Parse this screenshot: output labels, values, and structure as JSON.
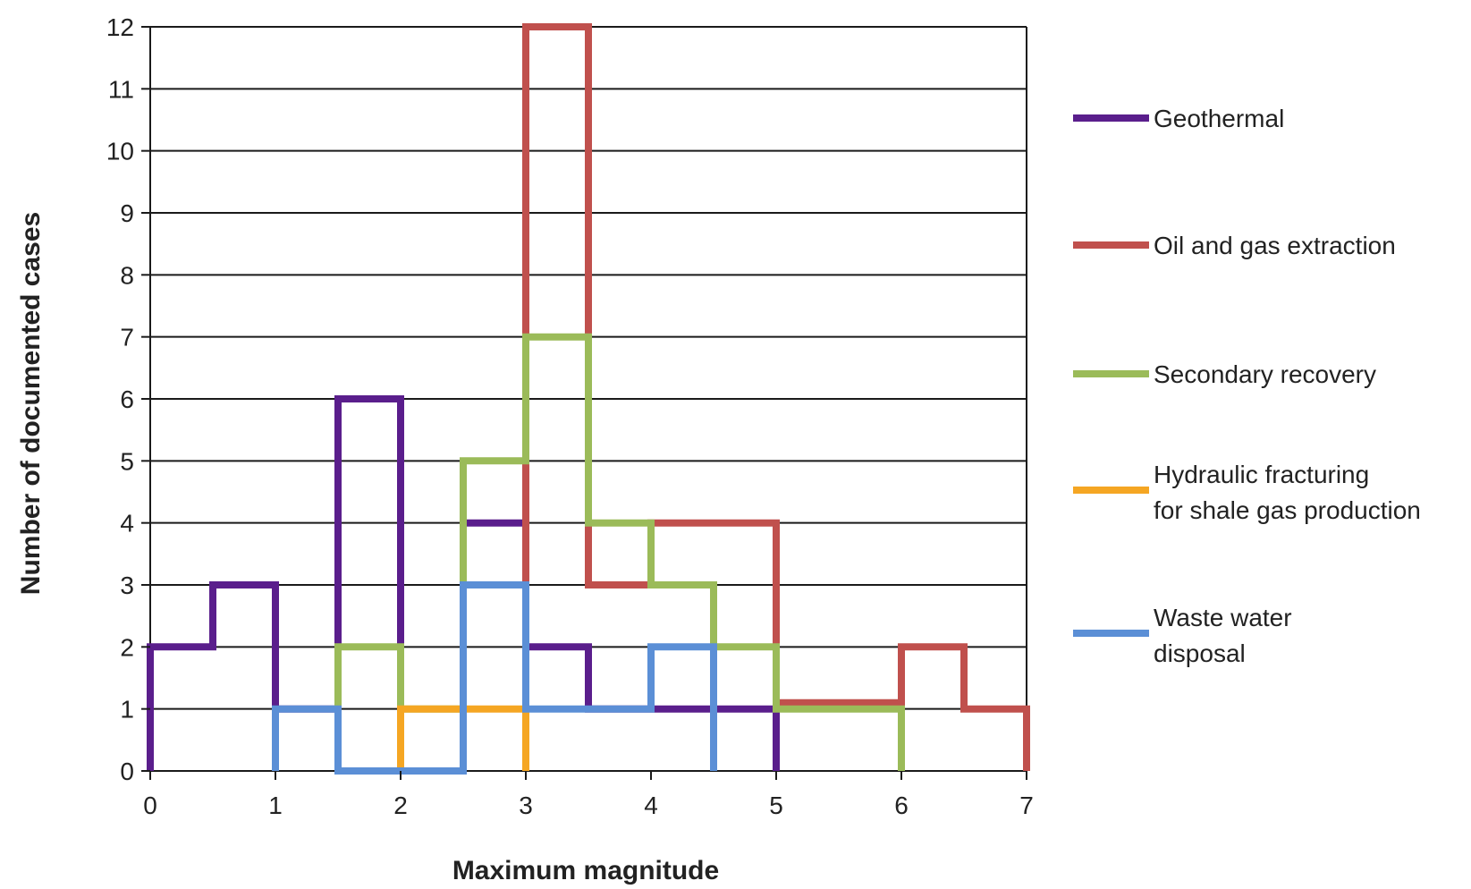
{
  "chart_data": {
    "type": "line",
    "step": true,
    "xlabel": "Maximum magnitude",
    "ylabel": "Number of documented cases",
    "xlim": [
      0,
      7
    ],
    "ylim": [
      0,
      12
    ],
    "x_ticks": [
      "0",
      "1",
      "2",
      "3",
      "4",
      "5",
      "6",
      "7"
    ],
    "y_ticks": [
      "0",
      "1",
      "2",
      "3",
      "4",
      "5",
      "6",
      "7",
      "8",
      "9",
      "10",
      "11",
      "12"
    ],
    "grid": "horizontal",
    "legend_position": "right",
    "series": [
      {
        "name": "Geothermal",
        "color": "#5a1e8c",
        "points": [
          [
            0,
            0
          ],
          [
            0,
            2
          ],
          [
            0.5,
            2
          ],
          [
            0.5,
            3
          ],
          [
            1,
            3
          ],
          [
            1,
            1
          ],
          [
            1.5,
            1
          ],
          [
            1.5,
            6
          ],
          [
            2,
            6
          ],
          [
            2,
            0
          ],
          [
            2.5,
            0
          ],
          [
            2.5,
            4
          ],
          [
            3,
            4
          ],
          [
            3,
            2
          ],
          [
            3.5,
            2
          ],
          [
            3.5,
            1
          ],
          [
            4,
            1
          ],
          [
            4.5,
            1
          ],
          [
            5,
            1
          ],
          [
            5,
            0
          ]
        ]
      },
      {
        "name": "Oil and gas extraction",
        "color": "#c0504d",
        "points": [
          [
            3,
            0
          ],
          [
            3,
            12
          ],
          [
            3.5,
            12
          ],
          [
            3.5,
            3
          ],
          [
            4,
            3
          ],
          [
            4,
            4
          ],
          [
            5,
            4
          ],
          [
            5,
            1.1
          ],
          [
            6,
            1.1
          ],
          [
            6,
            2
          ],
          [
            6.5,
            2
          ],
          [
            6.5,
            1
          ],
          [
            7,
            1
          ],
          [
            7,
            0
          ]
        ]
      },
      {
        "name": "Secondary recovery",
        "color": "#9bbb59",
        "points": [
          [
            1.5,
            0
          ],
          [
            1.5,
            2
          ],
          [
            2,
            2
          ],
          [
            2,
            1
          ],
          [
            2.5,
            1
          ],
          [
            2.5,
            5
          ],
          [
            3,
            5
          ],
          [
            3,
            7
          ],
          [
            3.5,
            7
          ],
          [
            3.5,
            4
          ],
          [
            4,
            4
          ],
          [
            4,
            3
          ],
          [
            4.5,
            3
          ],
          [
            4.5,
            2
          ],
          [
            5,
            2
          ],
          [
            5,
            1
          ],
          [
            6,
            1
          ],
          [
            6,
            0
          ]
        ]
      },
      {
        "name": "Hydraulic fracturing for shale gas production",
        "label_lines": [
          "Hydraulic fracturing",
          "for shale gas production"
        ],
        "color": "#f5a623",
        "points": [
          [
            2,
            0
          ],
          [
            2,
            1
          ],
          [
            3,
            1
          ],
          [
            3,
            0
          ]
        ]
      },
      {
        "name": "Waste water disposal",
        "label_lines": [
          "Waste water",
          "disposal"
        ],
        "color": "#5b8fd6",
        "points": [
          [
            1,
            0
          ],
          [
            1,
            1
          ],
          [
            1.5,
            1
          ],
          [
            1.5,
            0
          ],
          [
            2.5,
            0
          ],
          [
            2.5,
            3
          ],
          [
            3,
            3
          ],
          [
            3,
            1
          ],
          [
            4,
            1
          ],
          [
            4,
            2
          ],
          [
            4.5,
            2
          ],
          [
            4.5,
            0
          ]
        ]
      }
    ]
  }
}
